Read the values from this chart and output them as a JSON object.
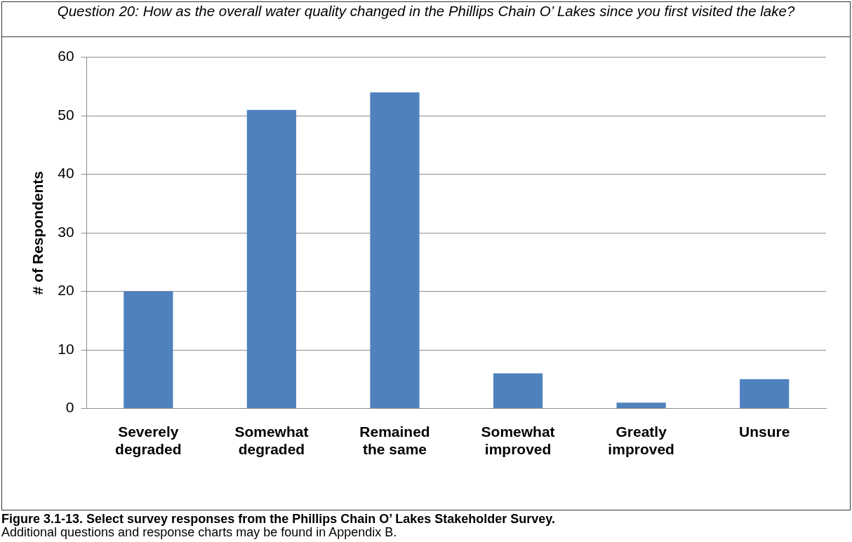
{
  "chart_data": {
    "type": "bar",
    "title": "Question 20: How as the overall water quality changed in the Phillips Chain O’ Lakes since you first visited the lake?",
    "ylabel": "# of Respondents",
    "categories": [
      "Severely degraded",
      "Somewhat degraded",
      "Remained the same",
      "Somewhat improved",
      "Greatly improved",
      "Unsure"
    ],
    "values": [
      20,
      51,
      54,
      6,
      1,
      5
    ],
    "color": "#4f81bd",
    "ylim": [
      0,
      60
    ],
    "yticks": [
      0,
      10,
      20,
      30,
      40,
      50,
      60
    ],
    "grid": "y",
    "legend": false,
    "annotations": [
      "Figure 3.1-13.  Select survey responses from the Phillips Chain O’ Lakes Stakeholder Survey.",
      "Additional questions and response charts may be found in Appendix B."
    ]
  }
}
